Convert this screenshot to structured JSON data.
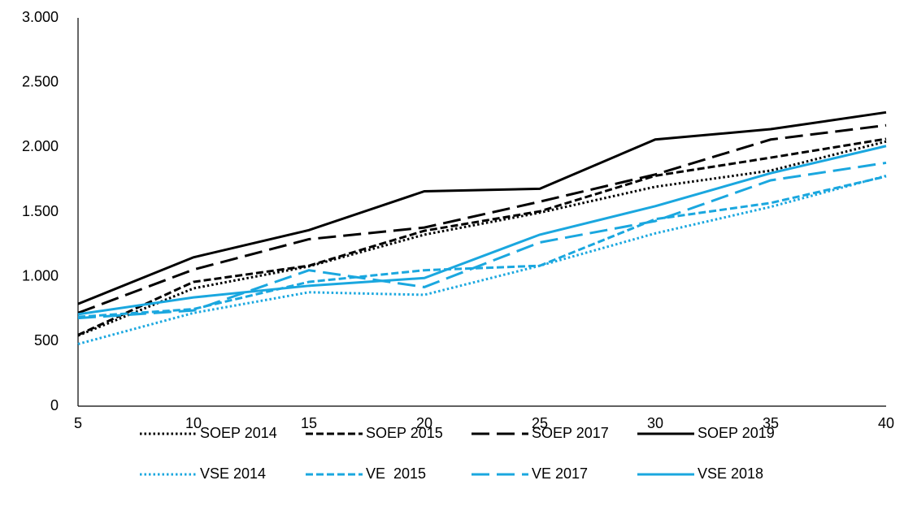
{
  "chart_data": {
    "type": "line",
    "x": [
      5,
      10,
      15,
      20,
      25,
      30,
      35,
      40
    ],
    "xlim": [
      5,
      40
    ],
    "xticks": [
      5,
      10,
      15,
      20,
      25,
      30,
      35,
      40
    ],
    "ylim": [
      0,
      3000
    ],
    "yticks": [
      0,
      500,
      {
        "value": 1000,
        "label": "1.000"
      },
      {
        "value": 1500,
        "label": "1.500"
      },
      {
        "value": 2000,
        "label": "2.000"
      },
      {
        "value": 2500,
        "label": "2.500"
      },
      {
        "value": 3000,
        "label": "3.000"
      }
    ],
    "grid": false,
    "legend": "bottom",
    "series": [
      {
        "name": "SOEP 2014",
        "color": "#000000",
        "dash": "dotted",
        "values": [
          545,
          910,
          1080,
          1325,
          1495,
          1695,
          1820,
          2045
        ]
      },
      {
        "name": "SOEP 2015",
        "color": "#000000",
        "dash": "dashed",
        "values": [
          550,
          960,
          1085,
          1355,
          1505,
          1780,
          1920,
          2065
        ]
      },
      {
        "name": "SOEP 2017",
        "color": "#000000",
        "dash": "longdash",
        "values": [
          720,
          1055,
          1290,
          1380,
          1580,
          1790,
          2060,
          2170
        ]
      },
      {
        "name": "SOEP 2019",
        "color": "#000000",
        "dash": "solid",
        "values": [
          790,
          1150,
          1360,
          1660,
          1680,
          2060,
          2140,
          2270
        ]
      },
      {
        "name": "VSE 2014",
        "color": "#1aa7df",
        "dash": "dotted",
        "values": [
          480,
          720,
          880,
          860,
          1085,
          1335,
          1540,
          1780
        ]
      },
      {
        "name": "VE  2015",
        "color": "#1aa7df",
        "dash": "dashed",
        "values": [
          690,
          750,
          960,
          1050,
          1085,
          1445,
          1570,
          1775
        ]
      },
      {
        "name": "VE 2017",
        "color": "#1aa7df",
        "dash": "longdash",
        "values": [
          680,
          740,
          1050,
          920,
          1265,
          1430,
          1745,
          1880
        ]
      },
      {
        "name": "VSE 2018",
        "color": "#1aa7df",
        "dash": "solid",
        "values": [
          710,
          840,
          930,
          990,
          1325,
          1545,
          1800,
          2010
        ]
      }
    ]
  }
}
